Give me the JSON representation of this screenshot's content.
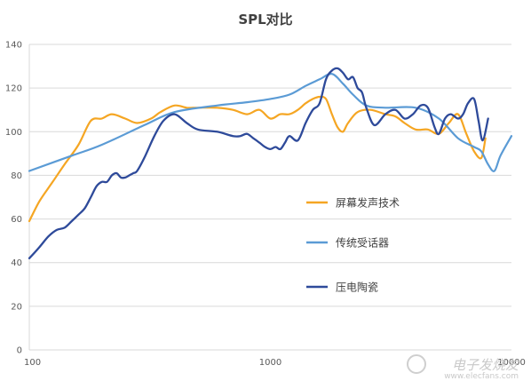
{
  "chart_data": {
    "type": "line",
    "title": "SPL对比",
    "x_scale": "log",
    "xlim": [
      100,
      10000
    ],
    "ylim": [
      0,
      140
    ],
    "x_ticks": [
      100,
      1000,
      10000
    ],
    "x_tick_labels": [
      "100",
      "1000",
      "10000"
    ],
    "y_ticks": [
      0,
      20,
      40,
      60,
      80,
      100,
      120,
      140
    ],
    "y_tick_labels": [
      "0",
      "20",
      "40",
      "60",
      "80",
      "100",
      "120",
      "140"
    ],
    "grid": "horizontal",
    "legend_position": "inside-right",
    "series": [
      {
        "name": "屏幕发声技术",
        "color": "#F5A623",
        "x": [
          100,
          110,
          125,
          140,
          160,
          180,
          200,
          220,
          250,
          280,
          320,
          350,
          400,
          450,
          500,
          600,
          700,
          800,
          900,
          1000,
          1100,
          1200,
          1300,
          1400,
          1500,
          1600,
          1700,
          1800,
          1900,
          2000,
          2100,
          2300,
          2600,
          3000,
          3300,
          3600,
          4000,
          4500,
          5000,
          5500,
          6000,
          6500,
          7000,
          7500,
          7800
        ],
        "values": [
          59,
          68,
          77,
          85,
          94,
          105,
          106,
          108,
          106,
          104,
          106,
          109,
          112,
          111,
          111,
          111,
          110,
          108,
          110,
          106,
          108,
          108,
          110,
          113,
          115,
          116,
          115,
          108,
          102,
          100,
          104,
          109,
          110,
          108,
          107,
          104,
          101,
          101,
          99,
          104,
          108,
          99,
          91,
          88,
          97
        ]
      },
      {
        "name": "传统受话器",
        "color": "#5B9BD5",
        "x": [
          100,
          150,
          200,
          300,
          400,
          600,
          800,
          1000,
          1200,
          1400,
          1600,
          1800,
          2000,
          2200,
          2500,
          3000,
          4000,
          5000,
          6000,
          7000,
          7500,
          8000,
          8500,
          9000,
          10000
        ],
        "values": [
          82,
          89,
          94,
          103,
          109,
          112,
          113.5,
          115,
          117,
          121,
          124,
          126.5,
          122,
          117,
          112,
          111,
          111,
          106,
          97,
          93,
          91,
          85,
          82,
          89,
          98
        ]
      },
      {
        "name": "压电陶瓷",
        "color": "#2E4A9A",
        "x": [
          100,
          110,
          120,
          130,
          140,
          150,
          160,
          170,
          180,
          190,
          200,
          210,
          220,
          230,
          240,
          250,
          260,
          270,
          280,
          300,
          330,
          360,
          400,
          450,
          500,
          600,
          700,
          750,
          800,
          850,
          900,
          950,
          1000,
          1050,
          1100,
          1150,
          1200,
          1300,
          1400,
          1500,
          1600,
          1700,
          1800,
          1900,
          2000,
          2100,
          2200,
          2300,
          2400,
          2500,
          2700,
          3000,
          3300,
          3600,
          3900,
          4200,
          4500,
          4800,
          5000,
          5300,
          5600,
          6000,
          6300,
          6600,
          7000,
          7300,
          7600,
          8000
        ],
        "values": [
          42,
          47,
          52,
          55,
          56,
          59,
          62,
          65,
          70,
          75,
          77,
          77,
          80,
          81,
          79,
          79,
          80,
          81,
          82,
          88,
          98,
          105,
          108,
          104,
          101,
          100,
          98,
          98,
          99,
          97,
          95,
          93,
          92,
          93,
          92,
          95,
          98,
          96,
          104,
          110,
          113,
          124,
          128,
          129,
          127,
          124,
          125,
          120,
          118,
          111,
          103,
          108,
          110,
          106,
          108,
          112,
          111,
          102,
          99,
          106,
          108,
          106,
          108,
          113,
          115,
          105,
          96,
          106
        ]
      }
    ]
  },
  "watermark": {
    "main": "电子发烧友",
    "sub": "www.elecfans.com"
  }
}
